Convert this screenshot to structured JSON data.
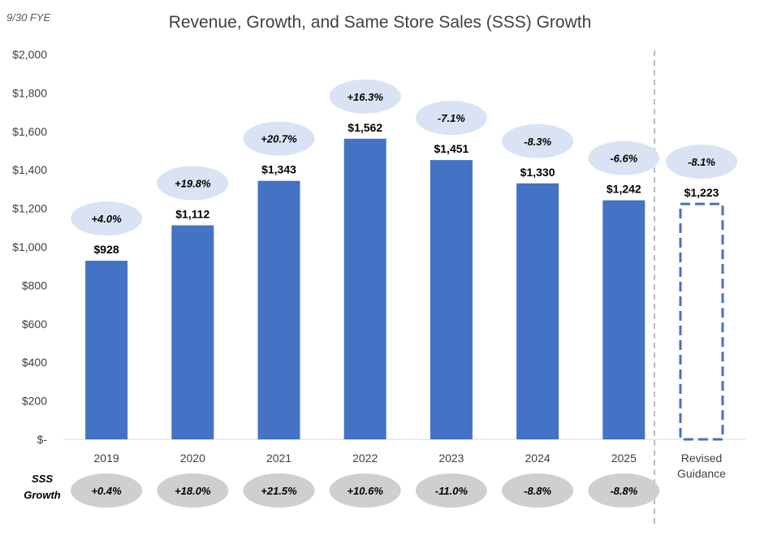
{
  "note": "9/30 FYE",
  "chart_data": {
    "type": "bar",
    "title": "Revenue, Growth, and Same Store Sales (SSS) Growth",
    "xlabel": "",
    "ylabel": "",
    "ylim": [
      0,
      2000
    ],
    "yticks": [
      0,
      200,
      400,
      600,
      800,
      1000,
      1200,
      1400,
      1600,
      1800,
      2000
    ],
    "ytick_labels": [
      "$-",
      "$200",
      "$400",
      "$600",
      "$800",
      "$1,000",
      "$1,200",
      "$1,400",
      "$1,600",
      "$1,800",
      "$2,000"
    ],
    "categories": [
      "2019",
      "2020",
      "2021",
      "2022",
      "2023",
      "2024",
      "2025"
    ],
    "values": [
      928,
      1112,
      1343,
      1562,
      1451,
      1330,
      1242
    ],
    "value_labels": [
      "$928",
      "$1,112",
      "$1,343",
      "$1,562",
      "$1,451",
      "$1,330",
      "$1,242"
    ],
    "growth_labels": [
      "+4.0%",
      "+19.8%",
      "+20.7%",
      "+16.3%",
      "-7.1%",
      "-8.3%",
      "-6.6%"
    ],
    "guidance": {
      "category_lines": [
        "Revised",
        "Guidance"
      ],
      "value": 1223,
      "value_label": "$1,223",
      "growth_label": "-8.1%",
      "style": "dashed outline"
    },
    "sss_label_lines": [
      "SSS",
      "Growth"
    ],
    "sss_growth": [
      "+0.4%",
      "+18.0%",
      "+21.5%",
      "+10.6%",
      "-11.0%",
      "-8.8%",
      "-8.8%"
    ],
    "colors": {
      "bar": "#4472C4",
      "growth_bubble": "#DAE3F3",
      "sss_bubble": "#D0CECE",
      "separator": "#A6A6A6"
    }
  }
}
